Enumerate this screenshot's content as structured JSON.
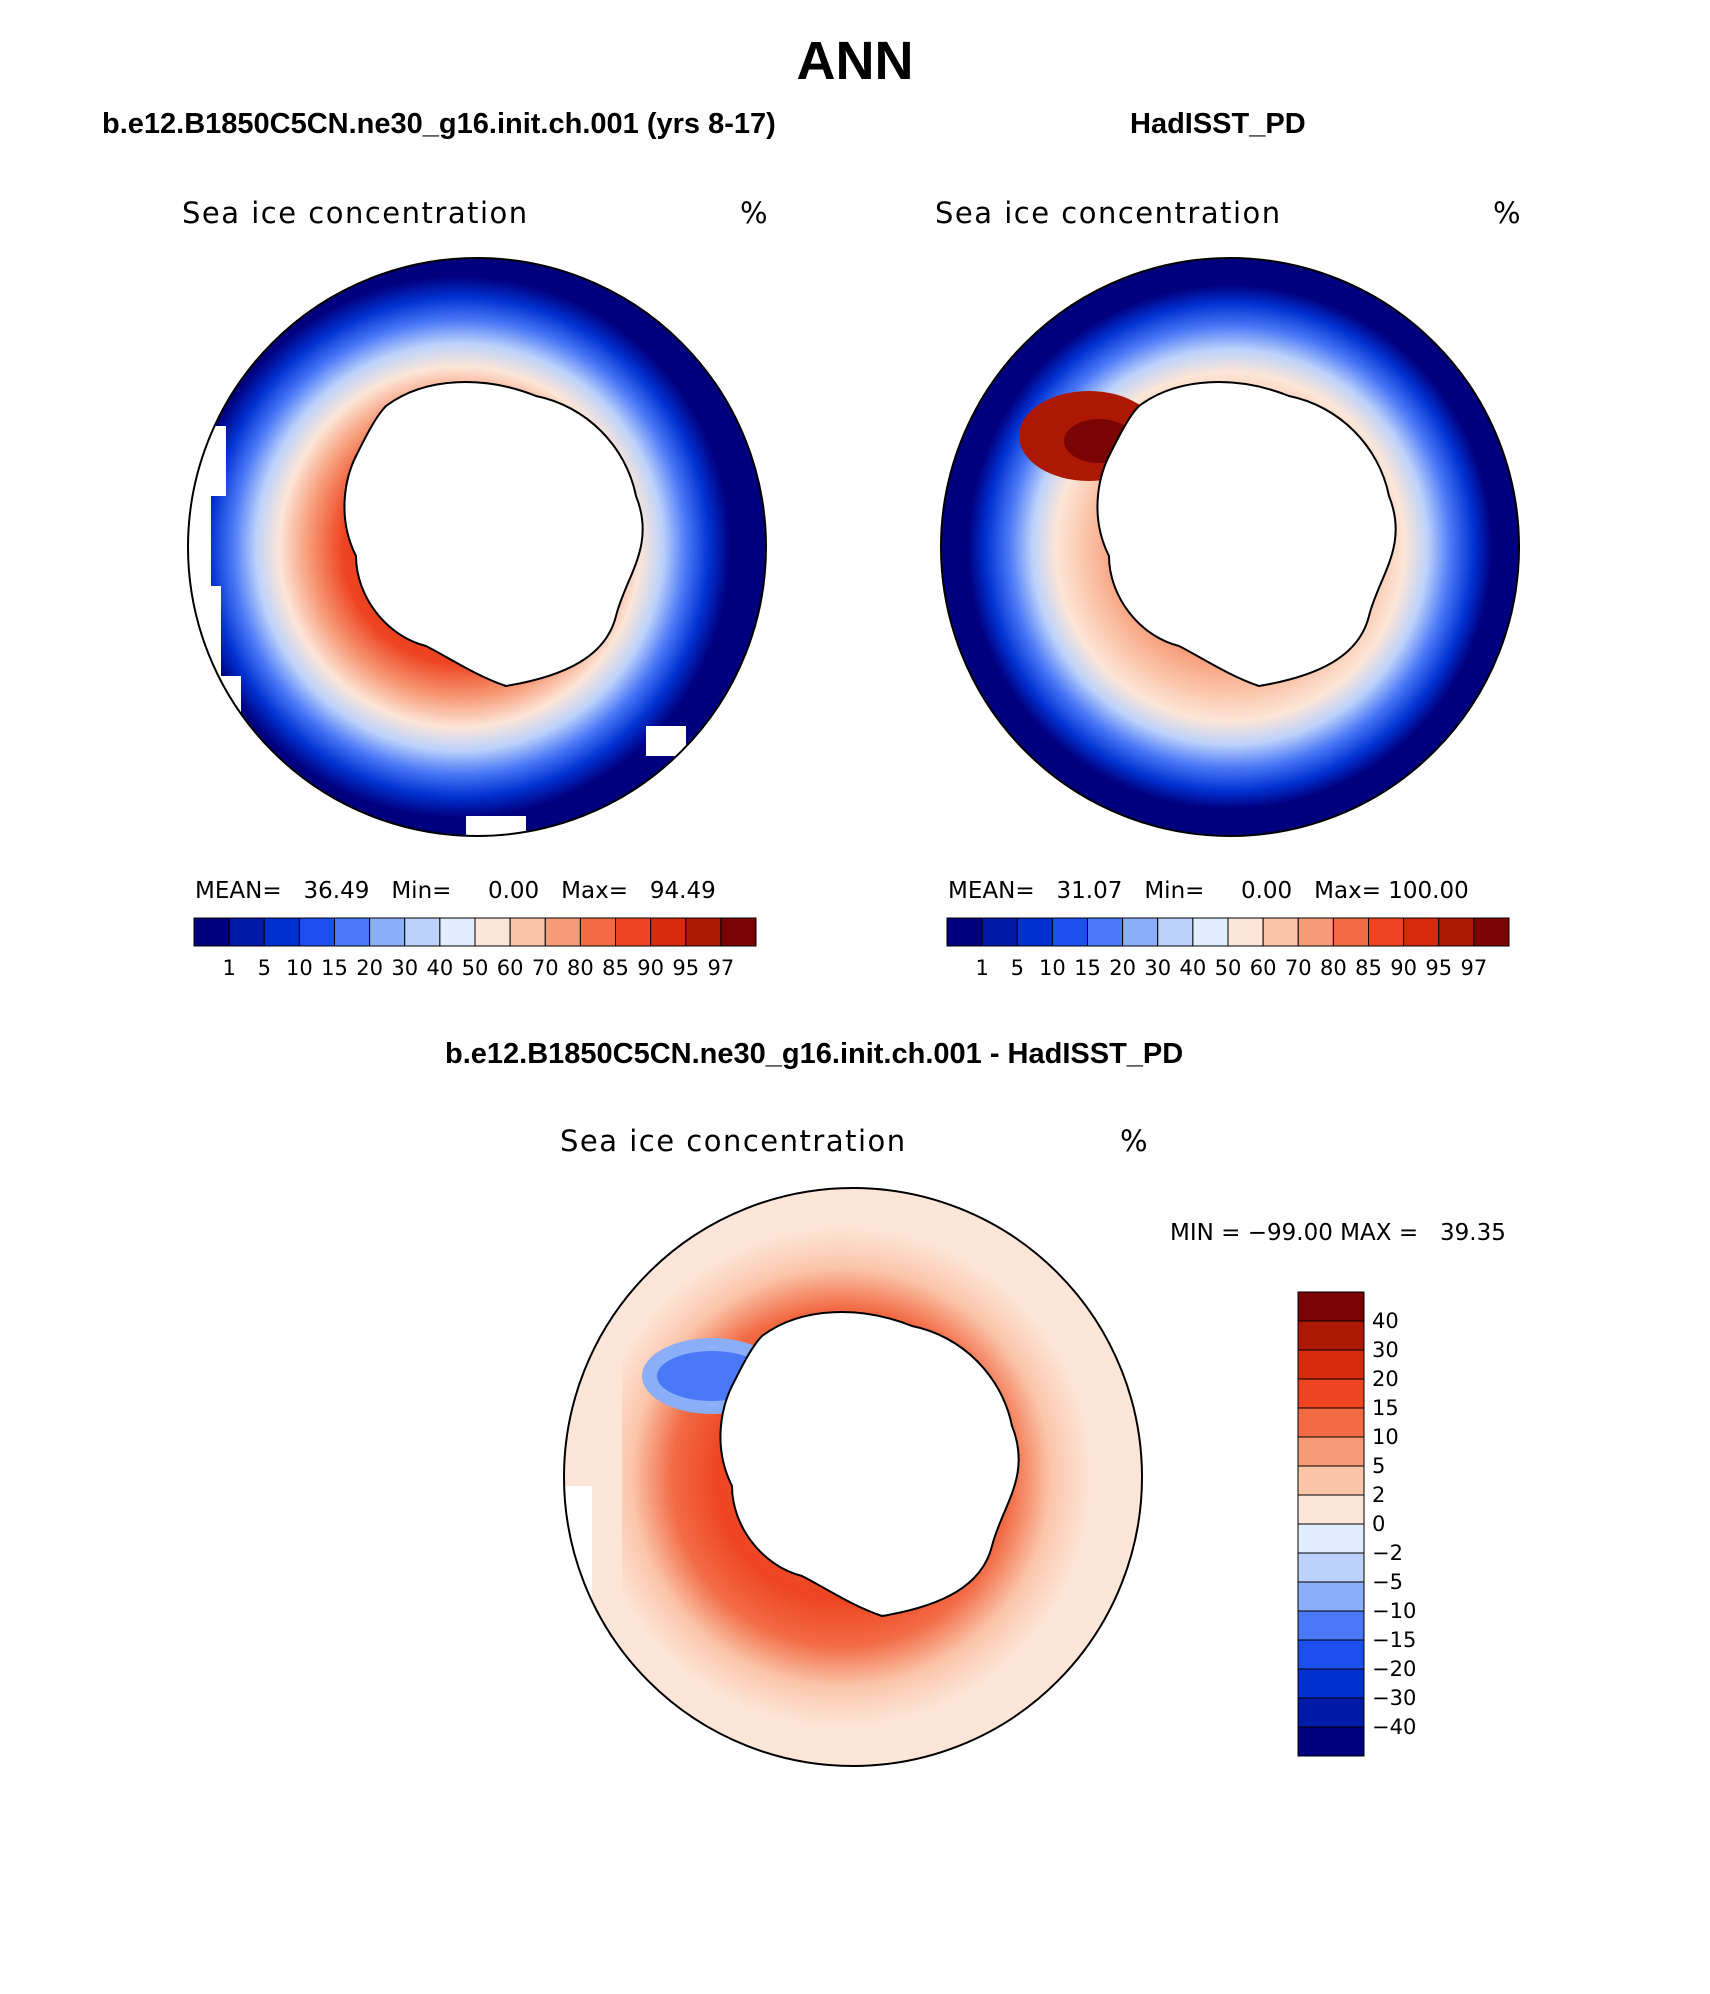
{
  "figure": {
    "title": "ANN",
    "model_title": "b.e12.B1850C5CN.ne30_g16.init.ch.001 (yrs 8-17)",
    "obs_title": "HadISST_PD",
    "diff_title": "b.e12.B1850C5CN.ne30_g16.init.ch.001 - HadISST_PD"
  },
  "panels": {
    "model": {
      "label": "Sea ice concentration",
      "units": "%",
      "stats": {
        "mean_label": "MEAN=",
        "mean": "36.49",
        "min_label": "Min=",
        "min": "0.00",
        "max_label": "Max=",
        "max": "94.49"
      }
    },
    "obs": {
      "label": "Sea ice concentration",
      "units": "%",
      "stats": {
        "mean_label": "MEAN=",
        "mean": "31.07",
        "min_label": "Min=",
        "min": "0.00",
        "max_label": "Max=",
        "max": "100.00"
      }
    },
    "diff": {
      "label": "Sea ice concentration",
      "units": "%",
      "stats": {
        "min_label": "MIN =",
        "min": "−99.00",
        "max_label": "MAX =",
        "max": "39.35"
      }
    }
  },
  "chart_data": [
    {
      "type": "heatmap",
      "name": "model",
      "colorbar_levels": [
        "1",
        "5",
        "10",
        "15",
        "20",
        "30",
        "40",
        "50",
        "60",
        "70",
        "80",
        "85",
        "90",
        "95",
        "97"
      ],
      "colorbar_colors": [
        "#00007f",
        "#0019a6",
        "#0030d0",
        "#1c4ff0",
        "#4a78f7",
        "#8aaff8",
        "#bcd2fb",
        "#e2eefd",
        "#fde6d8",
        "#fbc5aa",
        "#f79b78",
        "#f26b45",
        "#ee4421",
        "#d72a0c",
        "#ac1804",
        "#7a0403"
      ]
    },
    {
      "type": "heatmap",
      "name": "obs",
      "colorbar_levels": [
        "1",
        "5",
        "10",
        "15",
        "20",
        "30",
        "40",
        "50",
        "60",
        "70",
        "80",
        "85",
        "90",
        "95",
        "97"
      ],
      "colorbar_colors": [
        "#00007f",
        "#0019a6",
        "#0030d0",
        "#1c4ff0",
        "#4a78f7",
        "#8aaff8",
        "#bcd2fb",
        "#e2eefd",
        "#fde6d8",
        "#fbc5aa",
        "#f79b78",
        "#f26b45",
        "#ee4421",
        "#d72a0c",
        "#ac1804",
        "#7a0403"
      ]
    },
    {
      "type": "heatmap",
      "name": "diff",
      "colorbar_levels": [
        "40",
        "30",
        "20",
        "15",
        "10",
        "5",
        "2",
        "0",
        "−2",
        "−5",
        "−10",
        "−15",
        "−20",
        "−30",
        "−40"
      ],
      "colorbar_colors": [
        "#7a0403",
        "#ac1804",
        "#d72a0c",
        "#ee4421",
        "#f26b45",
        "#f79b78",
        "#fbc5aa",
        "#fde6d8",
        "#e2eefd",
        "#bcd2fb",
        "#8aaff8",
        "#4a78f7",
        "#1c4ff0",
        "#0030d0",
        "#0019a6",
        "#00007f"
      ]
    }
  ]
}
